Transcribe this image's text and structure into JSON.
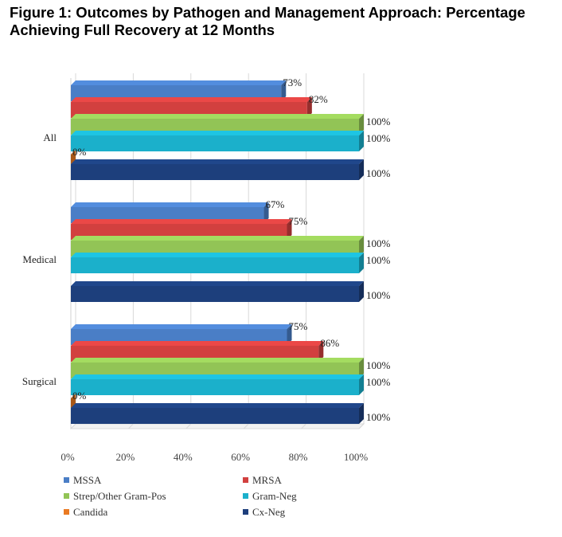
{
  "chart_data": {
    "type": "bar",
    "orientation": "horizontal",
    "title": "Figure 1: Outcomes by Pathogen and Management Approach: Percentage Achieving Full Recovery at 12 Months",
    "categories": [
      "All",
      "Medical",
      "Surgical"
    ],
    "xlim": [
      0,
      100
    ],
    "x_ticks": [
      "0%",
      "20%",
      "40%",
      "60%",
      "80%",
      "100%"
    ],
    "grid": true,
    "three_d": true,
    "legend_position": "bottom",
    "series": [
      {
        "name": "MSSA",
        "color": "#4a7ec6",
        "values": [
          73,
          67,
          75
        ],
        "labels": [
          "73%",
          "67%",
          "75%"
        ]
      },
      {
        "name": "MRSA",
        "color": "#d2403f",
        "values": [
          82,
          75,
          86
        ],
        "labels": [
          "82%",
          "75%",
          "86%"
        ]
      },
      {
        "name": "Strep/Other Gram-Pos",
        "color": "#92c456",
        "values": [
          100,
          100,
          100
        ],
        "labels": [
          "100%",
          "100%",
          "100%"
        ]
      },
      {
        "name": "Gram-Neg",
        "color": "#1bb0cb",
        "values": [
          100,
          100,
          100
        ],
        "labels": [
          "100%",
          "100%",
          "100%"
        ]
      },
      {
        "name": "Candida",
        "color": "#ea7a22",
        "values": [
          0,
          null,
          0
        ],
        "labels": [
          "0%",
          null,
          "0%"
        ]
      },
      {
        "name": "Cx-Neg",
        "color": "#1d3f7c",
        "values": [
          100,
          100,
          100
        ],
        "labels": [
          "100%",
          "100%",
          "100%"
        ]
      }
    ]
  }
}
